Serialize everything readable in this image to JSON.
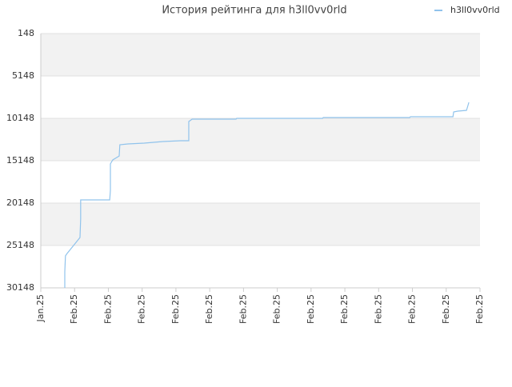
{
  "chart_data": {
    "type": "line",
    "title": "История рейтинга для h3ll0vv0rld",
    "legend_position": "top-right",
    "grid": true,
    "y_inverted": true,
    "band_color": "#f2f2f2",
    "xlim": [
      0,
      13
    ],
    "xticks": [
      {
        "value": 0,
        "label": "Jan.25"
      },
      {
        "value": 1,
        "label": "Feb.25"
      },
      {
        "value": 2,
        "label": "Feb.25"
      },
      {
        "value": 3,
        "label": "Feb.25"
      },
      {
        "value": 4,
        "label": "Feb.25"
      },
      {
        "value": 5,
        "label": "Feb.25"
      },
      {
        "value": 6,
        "label": "Feb.25"
      },
      {
        "value": 7,
        "label": "Feb.25"
      },
      {
        "value": 8,
        "label": "Feb.25"
      },
      {
        "value": 9,
        "label": "Feb.25"
      },
      {
        "value": 10,
        "label": "Feb.25"
      },
      {
        "value": 11,
        "label": "Feb.25"
      },
      {
        "value": 12,
        "label": "Feb.25"
      },
      {
        "value": 13,
        "label": "Feb.25"
      }
    ],
    "ylim": [
      148,
      30148
    ],
    "yticks": [
      148,
      5148,
      10148,
      15148,
      20148,
      25148,
      30148
    ],
    "x": [
      0.71,
      0.71,
      0.73,
      0.76,
      1.16,
      1.18,
      1.18,
      2.04,
      2.06,
      2.06,
      2.13,
      2.32,
      2.34,
      2.58,
      3.06,
      3.62,
      4.14,
      4.38,
      4.38,
      4.48,
      5.78,
      5.8,
      8.34,
      8.36,
      10.92,
      10.94,
      12.2,
      12.22,
      12.34,
      12.6,
      12.65,
      12.67
    ],
    "series": [
      {
        "name": "h3ll0vv0rld",
        "color": "#90c3ec",
        "values": [
          30148,
          28260,
          26375,
          26186,
          24204,
          22000,
          19771,
          19771,
          18638,
          15525,
          15053,
          14600,
          13262,
          13168,
          13073,
          12884,
          12790,
          12790,
          10525,
          10242,
          10242,
          10148,
          10148,
          10053,
          10053,
          9959,
          9959,
          9393,
          9299,
          9205,
          8544,
          8261
        ]
      }
    ]
  }
}
